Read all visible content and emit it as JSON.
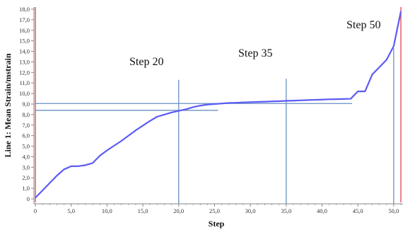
{
  "chart_data": {
    "type": "line",
    "xlabel": "Step",
    "ylabel": "Line 1: Mean Strain/mstrain",
    "xlim": [
      0,
      51
    ],
    "ylim": [
      0,
      18
    ],
    "x_ticks": [
      "0",
      "5,0",
      "10,0",
      "15,0",
      "20,0",
      "25,0",
      "30,0",
      "35,0",
      "40,0",
      "45,0",
      "50,0"
    ],
    "y_ticks": [
      "0",
      "1,0",
      "2,0",
      "3,0",
      "4,0",
      "5,0",
      "6,0",
      "7,0",
      "8,0",
      "9,0",
      "10,0",
      "11,0",
      "12,0",
      "13,0",
      "14,0",
      "15,0",
      "16,0",
      "17,0",
      "18,0"
    ],
    "series": [
      {
        "color": "#5b5bf5",
        "x": [
          0,
          1,
          2,
          3,
          4,
          5,
          6,
          7,
          8,
          9,
          10,
          12,
          14,
          16,
          17,
          18,
          19,
          20,
          21,
          22,
          23,
          24,
          25,
          26,
          27,
          28,
          29,
          30,
          31,
          32,
          33,
          34,
          35,
          36,
          37,
          38,
          39,
          40,
          41,
          42,
          43,
          44,
          45,
          46,
          47,
          48,
          49,
          50,
          51
        ],
        "y": [
          0.1,
          0.8,
          1.5,
          2.2,
          2.8,
          3.1,
          3.1,
          3.2,
          3.4,
          4.1,
          4.6,
          5.5,
          6.5,
          7.4,
          7.8,
          8.0,
          8.2,
          8.35,
          8.5,
          8.7,
          8.85,
          8.95,
          9.0,
          9.05,
          9.1,
          9.12,
          9.15,
          9.18,
          9.2,
          9.22,
          9.25,
          9.27,
          9.3,
          9.32,
          9.35,
          9.38,
          9.4,
          9.42,
          9.45,
          9.46,
          9.48,
          9.5,
          10.2,
          10.2,
          11.8,
          12.5,
          13.2,
          14.5,
          17.8
        ]
      }
    ],
    "annotations": [
      {
        "text": "Step 20",
        "x": 20
      },
      {
        "text": "Step 35",
        "x": 35
      },
      {
        "text": "Step 50",
        "x": 50
      }
    ],
    "reference_lines": {
      "horizontal": [
        8.4,
        9.05
      ],
      "vertical_blue": [
        20,
        35,
        50
      ],
      "vertical_red": [
        0,
        51
      ]
    },
    "colors": {
      "series": "#5b5bf5",
      "reference": "#6a8fc4",
      "boundary": "#e05060",
      "axis": "#888888"
    }
  }
}
